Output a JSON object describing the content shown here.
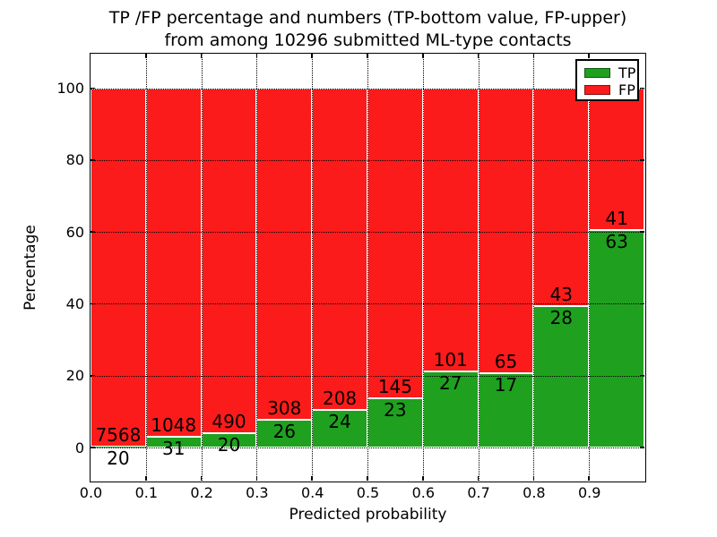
{
  "title": {
    "line1": "TP /FP percentage and numbers (TP-bottom value, FP-upper)",
    "line2": "from among 10296 submitted ML-type contacts"
  },
  "axes": {
    "xlabel": "Predicted probability",
    "ylabel": "Percentage",
    "xtick_labels": [
      "0.0",
      "0.1",
      "0.2",
      "0.3",
      "0.4",
      "0.5",
      "0.6",
      "0.7",
      "0.8",
      "0.9"
    ],
    "ytick_values": [
      0,
      20,
      40,
      60,
      80,
      100
    ]
  },
  "legend": {
    "items": [
      {
        "label": "TP",
        "color": "#1fa11f"
      },
      {
        "label": "FP",
        "color": "#fb1b1b"
      }
    ]
  },
  "colors": {
    "tp": "#1fa11f",
    "fp": "#fb1b1b",
    "grid": "#000000",
    "bar_edge": "#ffffff"
  },
  "chart_data": {
    "type": "bar",
    "stacked": true,
    "normalized": "percent",
    "title": "TP /FP percentage and numbers (TP-bottom value, FP-upper) from among 10296 submitted ML-type contacts",
    "xlabel": "Predicted probability",
    "ylabel": "Percentage",
    "xlim": [
      0.0,
      1.0
    ],
    "ylim": [
      -10,
      110
    ],
    "grid": true,
    "legend_position": "upper right",
    "bin_edges": [
      0.0,
      0.1,
      0.2,
      0.3,
      0.4,
      0.5,
      0.6,
      0.7,
      0.8,
      0.9,
      1.0
    ],
    "series": [
      {
        "name": "TP",
        "values": [
          20,
          31,
          20,
          26,
          24,
          23,
          27,
          17,
          28,
          63
        ]
      },
      {
        "name": "FP",
        "values": [
          7568,
          1048,
          490,
          308,
          208,
          145,
          101,
          65,
          43,
          41
        ]
      }
    ],
    "tp_percent_of_bin": [
      0.3,
      2.9,
      3.9,
      7.8,
      10.3,
      13.7,
      21.1,
      20.7,
      39.4,
      60.6
    ],
    "total_contacts": 10296
  }
}
